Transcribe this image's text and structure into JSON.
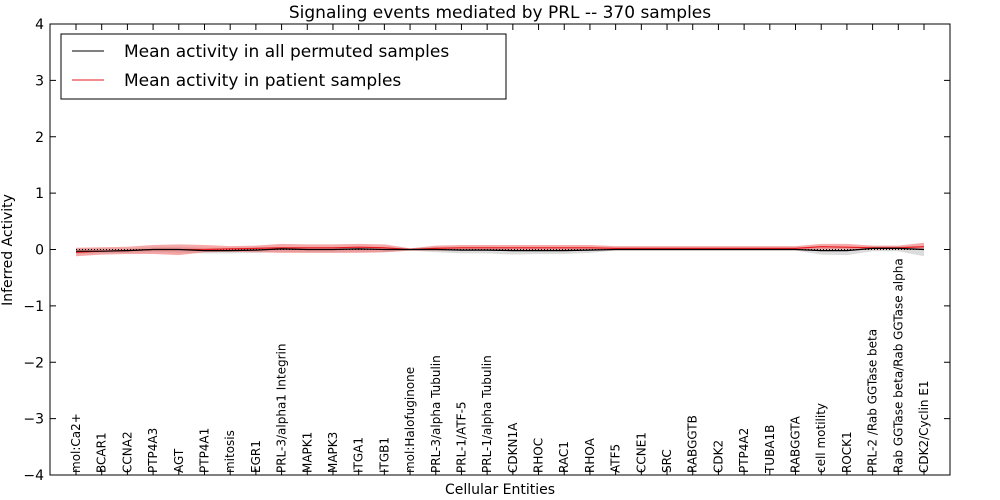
{
  "chart_data": {
    "type": "line",
    "title": "Signaling events mediated by PRL -- 370 samples",
    "xlabel": "Cellular Entities",
    "ylabel": "Inferred Activity",
    "ylim": [
      -4,
      4
    ],
    "yticks": [
      4,
      3,
      2,
      1,
      0,
      -1,
      -2,
      -3,
      -4
    ],
    "ytick_labels": [
      "4",
      "3",
      "2",
      "1",
      "0",
      "−1",
      "−2",
      "−3",
      "−4"
    ],
    "legend_position": "top-left",
    "categories": [
      "mol:Ca2+",
      "BCAR1",
      "CCNA2",
      "PTP4A3",
      "AGT",
      "PTP4A1",
      "mitosis",
      "EGR1",
      "PRL-3/alpha1 Integrin",
      "MAPK1",
      "MAPK3",
      "ITGA1",
      "ITGB1",
      "mol:Halofuginone",
      "PRL-3/alpha Tubulin",
      "PRL-1/ATF-5",
      "PRL-1/alpha Tubulin",
      "CDKN1A",
      "RHOC",
      "RAC1",
      "RHOA",
      "ATF5",
      "CCNE1",
      "SRC",
      "RABGGTB",
      "CDK2",
      "PTP4A2",
      "TUBA1B",
      "RABGGTA",
      "cell motility",
      "ROCK1",
      "PRL-2 /Rab GGTase beta",
      "Rab GGTase beta/Rab GGTase alpha",
      "CDK2/Cyclin E1"
    ],
    "series": [
      {
        "name": "Mean activity in all permuted samples",
        "color": "#000000",
        "values": [
          -0.03,
          -0.03,
          -0.02,
          0.0,
          0.0,
          -0.02,
          -0.02,
          -0.01,
          0.01,
          0.0,
          0.0,
          0.01,
          0.0,
          0.0,
          0.0,
          -0.01,
          -0.01,
          -0.02,
          -0.02,
          -0.02,
          -0.01,
          0.0,
          0.0,
          0.0,
          0.0,
          0.0,
          0.0,
          0.0,
          0.0,
          -0.02,
          -0.02,
          0.02,
          0.02,
          0.0
        ],
        "band_low": [
          -0.08,
          -0.07,
          -0.06,
          -0.05,
          -0.06,
          -0.07,
          -0.07,
          -0.06,
          -0.04,
          -0.05,
          -0.05,
          -0.04,
          -0.05,
          -0.02,
          -0.05,
          -0.07,
          -0.07,
          -0.09,
          -0.08,
          -0.08,
          -0.06,
          -0.02,
          -0.02,
          -0.02,
          -0.02,
          -0.02,
          -0.02,
          -0.02,
          -0.02,
          -0.09,
          -0.1,
          -0.03,
          -0.03,
          -0.12
        ],
        "band_high": [
          0.02,
          0.02,
          0.02,
          0.04,
          0.05,
          0.03,
          0.03,
          0.04,
          0.05,
          0.04,
          0.04,
          0.05,
          0.04,
          0.02,
          0.05,
          0.05,
          0.05,
          0.04,
          0.04,
          0.04,
          0.04,
          0.02,
          0.02,
          0.02,
          0.02,
          0.02,
          0.02,
          0.02,
          0.02,
          0.04,
          0.04,
          0.06,
          0.06,
          0.06
        ]
      },
      {
        "name": "Mean activity in patient samples",
        "color": "#e8191f",
        "values": [
          -0.05,
          -0.03,
          -0.02,
          0.0,
          0.0,
          0.0,
          0.01,
          0.02,
          0.03,
          0.03,
          0.03,
          0.04,
          0.03,
          0.0,
          0.02,
          0.03,
          0.03,
          0.03,
          0.03,
          0.03,
          0.03,
          0.02,
          0.02,
          0.02,
          0.02,
          0.02,
          0.02,
          0.02,
          0.02,
          0.05,
          0.04,
          0.03,
          0.03,
          0.05
        ],
        "band_low": [
          -0.12,
          -0.09,
          -0.08,
          -0.08,
          -0.1,
          -0.05,
          -0.04,
          -0.05,
          -0.06,
          -0.06,
          -0.06,
          -0.06,
          -0.05,
          -0.02,
          -0.02,
          -0.01,
          -0.01,
          -0.01,
          -0.01,
          -0.01,
          -0.01,
          -0.01,
          -0.01,
          -0.01,
          -0.01,
          -0.01,
          -0.01,
          -0.01,
          -0.01,
          0.0,
          0.0,
          0.0,
          0.0,
          0.0
        ],
        "band_high": [
          0.03,
          0.04,
          0.05,
          0.08,
          0.09,
          0.08,
          0.06,
          0.07,
          0.1,
          0.09,
          0.09,
          0.1,
          0.09,
          0.02,
          0.07,
          0.08,
          0.08,
          0.08,
          0.08,
          0.08,
          0.08,
          0.06,
          0.06,
          0.06,
          0.06,
          0.06,
          0.06,
          0.06,
          0.06,
          0.1,
          0.1,
          0.07,
          0.07,
          0.12
        ]
      }
    ],
    "colors": {
      "permuted_band": "#bfbfbf",
      "patient_band": "#f07070",
      "axes": "#000000",
      "zero_line": "#000000"
    }
  }
}
